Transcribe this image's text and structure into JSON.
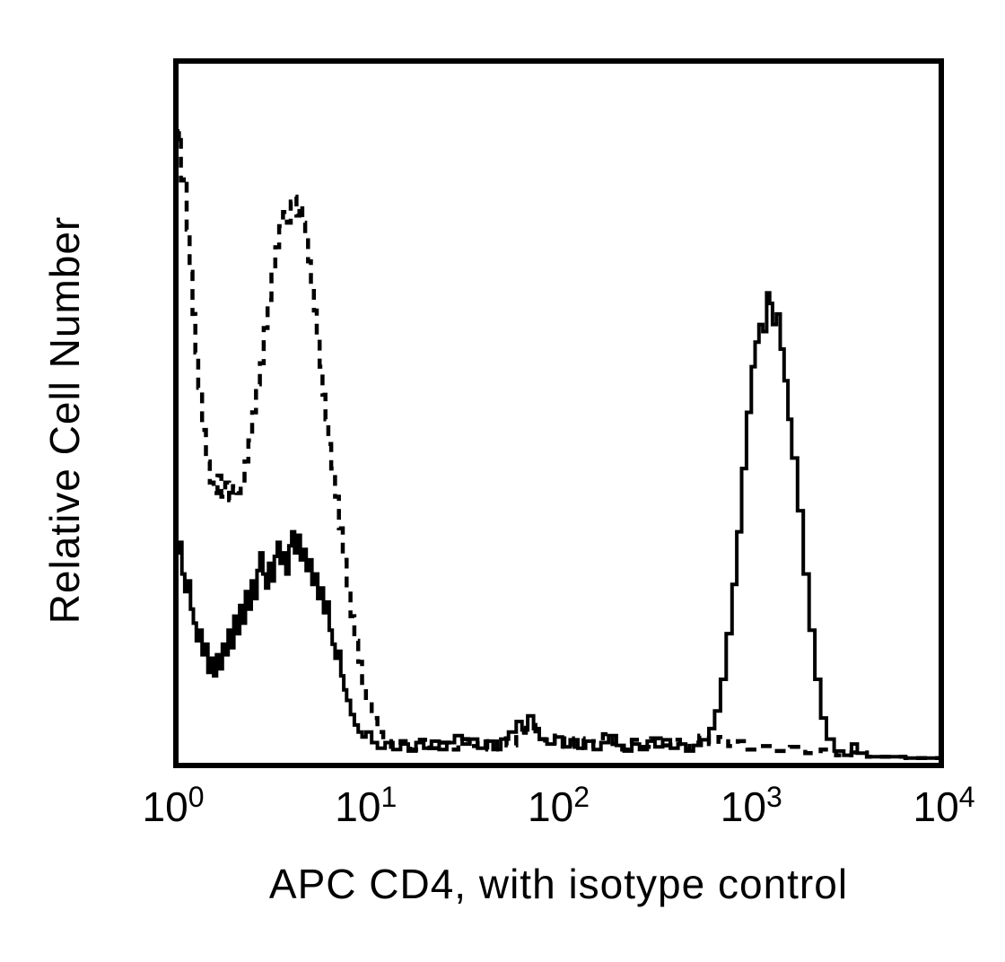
{
  "figure": {
    "x_ticks": [
      {
        "base": "10",
        "exp": "0"
      },
      {
        "base": "10",
        "exp": "1"
      },
      {
        "base": "10",
        "exp": "2"
      },
      {
        "base": "10",
        "exp": "3"
      },
      {
        "base": "10",
        "exp": "4"
      }
    ]
  },
  "colors": {
    "background": "#ffffff",
    "foreground": "#000000"
  },
  "chart_data": {
    "type": "line",
    "subtype": "flow-cytometry-overlay-histogram",
    "title": "",
    "xlabel": "APC CD4, with isotype control",
    "ylabel": "Relative Cell Number",
    "x_scale": "log10",
    "xlim_log10": [
      0,
      4
    ],
    "x_tick_labels": [
      "10^0",
      "10^1",
      "10^2",
      "10^3",
      "10^4"
    ],
    "ylim": [
      0,
      1
    ],
    "y_ticks": "none (unlabeled relative scale)",
    "grid": false,
    "legend": "none shown (dashed trace = isotype control, solid trace = APC CD4)",
    "series": [
      {
        "name": "isotype control",
        "line_style": "dashed",
        "color": "#000000",
        "points": [
          [
            0.0,
            0.93
          ],
          [
            0.015,
            0.885
          ],
          [
            0.03,
            0.9
          ],
          [
            0.04,
            0.83
          ],
          [
            0.055,
            0.835
          ],
          [
            0.07,
            0.76
          ],
          [
            0.085,
            0.7
          ],
          [
            0.1,
            0.64
          ],
          [
            0.115,
            0.585
          ],
          [
            0.13,
            0.535
          ],
          [
            0.15,
            0.475
          ],
          [
            0.17,
            0.43
          ],
          [
            0.19,
            0.4
          ],
          [
            0.21,
            0.385
          ],
          [
            0.23,
            0.41
          ],
          [
            0.25,
            0.38
          ],
          [
            0.27,
            0.4
          ],
          [
            0.29,
            0.375
          ],
          [
            0.31,
            0.395
          ],
          [
            0.33,
            0.385
          ],
          [
            0.35,
            0.4
          ],
          [
            0.37,
            0.43
          ],
          [
            0.39,
            0.46
          ],
          [
            0.41,
            0.5
          ],
          [
            0.43,
            0.54
          ],
          [
            0.45,
            0.57
          ],
          [
            0.47,
            0.62
          ],
          [
            0.49,
            0.66
          ],
          [
            0.51,
            0.7
          ],
          [
            0.53,
            0.735
          ],
          [
            0.55,
            0.765
          ],
          [
            0.57,
            0.785
          ],
          [
            0.59,
            0.77
          ],
          [
            0.61,
            0.8
          ],
          [
            0.625,
            0.807
          ],
          [
            0.64,
            0.78
          ],
          [
            0.655,
            0.795
          ],
          [
            0.67,
            0.77
          ],
          [
            0.685,
            0.745
          ],
          [
            0.7,
            0.715
          ],
          [
            0.715,
            0.68
          ],
          [
            0.73,
            0.645
          ],
          [
            0.745,
            0.61
          ],
          [
            0.76,
            0.565
          ],
          [
            0.775,
            0.525
          ],
          [
            0.79,
            0.49
          ],
          [
            0.805,
            0.455
          ],
          [
            0.82,
            0.42
          ],
          [
            0.84,
            0.38
          ],
          [
            0.86,
            0.335
          ],
          [
            0.88,
            0.29
          ],
          [
            0.9,
            0.25
          ],
          [
            0.92,
            0.21
          ],
          [
            0.94,
            0.175
          ],
          [
            0.96,
            0.145
          ],
          [
            0.98,
            0.115
          ],
          [
            1.0,
            0.09
          ],
          [
            1.03,
            0.065
          ],
          [
            1.06,
            0.045
          ],
          [
            1.09,
            0.032
          ],
          [
            1.13,
            0.024
          ],
          [
            1.18,
            0.032
          ],
          [
            1.23,
            0.02
          ],
          [
            1.28,
            0.034
          ],
          [
            1.33,
            0.022
          ],
          [
            1.38,
            0.03
          ],
          [
            1.43,
            0.02
          ],
          [
            1.48,
            0.035
          ],
          [
            1.53,
            0.025
          ],
          [
            1.58,
            0.032
          ],
          [
            1.63,
            0.02
          ],
          [
            1.68,
            0.036
          ],
          [
            1.73,
            0.026
          ],
          [
            1.78,
            0.044
          ],
          [
            1.83,
            0.055
          ],
          [
            1.88,
            0.035
          ],
          [
            1.93,
            0.03
          ],
          [
            1.98,
            0.04
          ],
          [
            2.03,
            0.024
          ],
          [
            2.08,
            0.036
          ],
          [
            2.13,
            0.022
          ],
          [
            2.18,
            0.032
          ],
          [
            2.23,
            0.042
          ],
          [
            2.28,
            0.028
          ],
          [
            2.33,
            0.02
          ],
          [
            2.38,
            0.034
          ],
          [
            2.43,
            0.024
          ],
          [
            2.48,
            0.036
          ],
          [
            2.53,
            0.026
          ],
          [
            2.58,
            0.034
          ],
          [
            2.63,
            0.02
          ],
          [
            2.68,
            0.03
          ],
          [
            2.73,
            0.04
          ],
          [
            2.78,
            0.028
          ],
          [
            2.83,
            0.038
          ],
          [
            2.88,
            0.025
          ],
          [
            2.93,
            0.032
          ],
          [
            2.98,
            0.02
          ],
          [
            3.05,
            0.025
          ],
          [
            3.12,
            0.018
          ],
          [
            3.2,
            0.024
          ],
          [
            3.28,
            0.015
          ],
          [
            3.36,
            0.02
          ],
          [
            3.44,
            0.012
          ],
          [
            3.52,
            0.016
          ],
          [
            3.6,
            0.01
          ],
          [
            3.8,
            0.008
          ],
          [
            4.0,
            0.008
          ]
        ]
      },
      {
        "name": "APC CD4",
        "line_style": "solid",
        "color": "#000000",
        "points": [
          [
            0.0,
            0.325
          ],
          [
            0.015,
            0.3
          ],
          [
            0.03,
            0.315
          ],
          [
            0.045,
            0.27
          ],
          [
            0.06,
            0.245
          ],
          [
            0.075,
            0.26
          ],
          [
            0.09,
            0.22
          ],
          [
            0.105,
            0.2
          ],
          [
            0.12,
            0.175
          ],
          [
            0.135,
            0.19
          ],
          [
            0.15,
            0.155
          ],
          [
            0.165,
            0.17
          ],
          [
            0.18,
            0.13
          ],
          [
            0.195,
            0.15
          ],
          [
            0.21,
            0.125
          ],
          [
            0.225,
            0.155
          ],
          [
            0.24,
            0.135
          ],
          [
            0.255,
            0.17
          ],
          [
            0.27,
            0.155
          ],
          [
            0.285,
            0.19
          ],
          [
            0.3,
            0.165
          ],
          [
            0.315,
            0.21
          ],
          [
            0.33,
            0.185
          ],
          [
            0.345,
            0.225
          ],
          [
            0.36,
            0.2
          ],
          [
            0.375,
            0.245
          ],
          [
            0.39,
            0.22
          ],
          [
            0.405,
            0.26
          ],
          [
            0.42,
            0.235
          ],
          [
            0.435,
            0.275
          ],
          [
            0.45,
            0.3
          ],
          [
            0.465,
            0.27
          ],
          [
            0.48,
            0.25
          ],
          [
            0.495,
            0.285
          ],
          [
            0.51,
            0.26
          ],
          [
            0.525,
            0.295
          ],
          [
            0.54,
            0.315
          ],
          [
            0.555,
            0.285
          ],
          [
            0.57,
            0.3
          ],
          [
            0.585,
            0.27
          ],
          [
            0.6,
            0.31
          ],
          [
            0.615,
            0.33
          ],
          [
            0.63,
            0.3
          ],
          [
            0.645,
            0.325
          ],
          [
            0.66,
            0.29
          ],
          [
            0.675,
            0.305
          ],
          [
            0.69,
            0.275
          ],
          [
            0.705,
            0.29
          ],
          [
            0.72,
            0.255
          ],
          [
            0.735,
            0.27
          ],
          [
            0.75,
            0.235
          ],
          [
            0.765,
            0.25
          ],
          [
            0.78,
            0.215
          ],
          [
            0.795,
            0.23
          ],
          [
            0.81,
            0.19
          ],
          [
            0.825,
            0.17
          ],
          [
            0.84,
            0.15
          ],
          [
            0.855,
            0.16
          ],
          [
            0.87,
            0.125
          ],
          [
            0.885,
            0.105
          ],
          [
            0.9,
            0.09
          ],
          [
            0.92,
            0.07
          ],
          [
            0.94,
            0.055
          ],
          [
            0.96,
            0.045
          ],
          [
            0.98,
            0.038
          ],
          [
            1.0,
            0.045
          ],
          [
            1.03,
            0.03
          ],
          [
            1.06,
            0.022
          ],
          [
            1.1,
            0.03
          ],
          [
            1.14,
            0.02
          ],
          [
            1.18,
            0.028
          ],
          [
            1.22,
            0.018
          ],
          [
            1.26,
            0.03
          ],
          [
            1.3,
            0.022
          ],
          [
            1.34,
            0.032
          ],
          [
            1.38,
            0.02
          ],
          [
            1.42,
            0.03
          ],
          [
            1.46,
            0.04
          ],
          [
            1.5,
            0.028
          ],
          [
            1.54,
            0.035
          ],
          [
            1.58,
            0.022
          ],
          [
            1.62,
            0.032
          ],
          [
            1.66,
            0.02
          ],
          [
            1.7,
            0.035
          ],
          [
            1.74,
            0.045
          ],
          [
            1.78,
            0.06
          ],
          [
            1.81,
            0.048
          ],
          [
            1.84,
            0.068
          ],
          [
            1.87,
            0.05
          ],
          [
            1.9,
            0.035
          ],
          [
            1.94,
            0.028
          ],
          [
            1.98,
            0.038
          ],
          [
            2.02,
            0.024
          ],
          [
            2.06,
            0.034
          ],
          [
            2.1,
            0.022
          ],
          [
            2.14,
            0.032
          ],
          [
            2.18,
            0.02
          ],
          [
            2.22,
            0.03
          ],
          [
            2.26,
            0.04
          ],
          [
            2.3,
            0.026
          ],
          [
            2.34,
            0.018
          ],
          [
            2.38,
            0.028
          ],
          [
            2.42,
            0.02
          ],
          [
            2.46,
            0.032
          ],
          [
            2.5,
            0.024
          ],
          [
            2.54,
            0.034
          ],
          [
            2.58,
            0.022
          ],
          [
            2.62,
            0.028
          ],
          [
            2.66,
            0.018
          ],
          [
            2.7,
            0.026
          ],
          [
            2.74,
            0.034
          ],
          [
            2.78,
            0.05
          ],
          [
            2.81,
            0.075
          ],
          [
            2.84,
            0.12
          ],
          [
            2.87,
            0.185
          ],
          [
            2.9,
            0.255
          ],
          [
            2.925,
            0.33
          ],
          [
            2.95,
            0.42
          ],
          [
            2.975,
            0.5
          ],
          [
            3.0,
            0.565
          ],
          [
            3.02,
            0.6
          ],
          [
            3.04,
            0.625
          ],
          [
            3.06,
            0.615
          ],
          [
            3.08,
            0.67
          ],
          [
            3.095,
            0.655
          ],
          [
            3.11,
            0.625
          ],
          [
            3.13,
            0.64
          ],
          [
            3.15,
            0.59
          ],
          [
            3.17,
            0.545
          ],
          [
            3.19,
            0.49
          ],
          [
            3.21,
            0.435
          ],
          [
            3.24,
            0.36
          ],
          [
            3.27,
            0.27
          ],
          [
            3.3,
            0.19
          ],
          [
            3.33,
            0.12
          ],
          [
            3.36,
            0.065
          ],
          [
            3.39,
            0.035
          ],
          [
            3.43,
            0.018
          ],
          [
            3.48,
            0.012
          ],
          [
            3.52,
            0.028
          ],
          [
            3.55,
            0.015
          ],
          [
            3.6,
            0.01
          ],
          [
            3.8,
            0.008
          ],
          [
            4.0,
            0.008
          ]
        ]
      }
    ]
  }
}
